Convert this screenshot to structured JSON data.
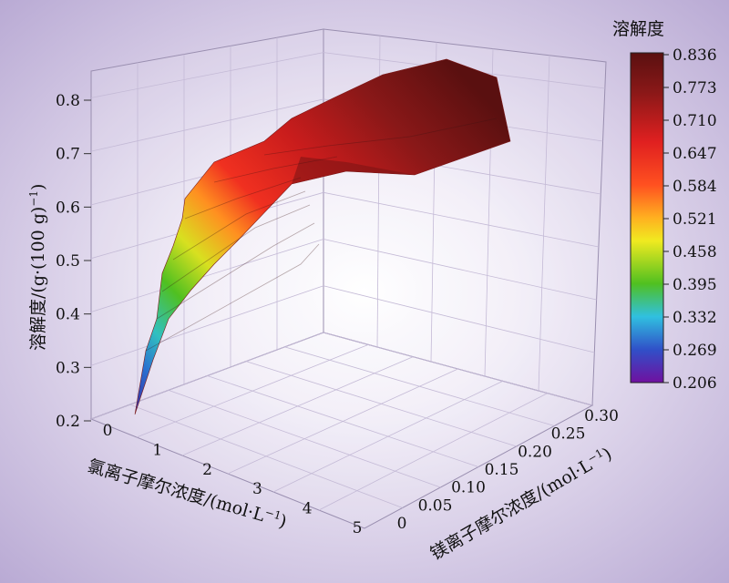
{
  "chart_data": {
    "type": "surface",
    "colorbar": {
      "title": "溶解度",
      "ticks": [
        "0.836",
        "0.773",
        "0.710",
        "0.647",
        "0.584",
        "0.521",
        "0.458",
        "0.395",
        "0.332",
        "0.269",
        "0.206"
      ],
      "range": [
        0.206,
        0.836
      ],
      "colors": [
        "#5a1010",
        "#7a1a1a",
        "#a01818",
        "#e02020",
        "#ff3020",
        "#ff8a20",
        "#f0ea20",
        "#60c820",
        "#30b8c8",
        "#3050c8",
        "#7010a0"
      ]
    },
    "z_axis": {
      "label": "溶解度/(g·(100 g)",
      "label_sup": "−1",
      "label_close": ")",
      "ticks": [
        "0.8",
        "0.7",
        "0.6",
        "0.5",
        "0.4",
        "0.3",
        "0.2"
      ],
      "range": [
        0.2,
        0.85
      ]
    },
    "x_axis": {
      "label": "氯离子摩尔浓度/(mol·L",
      "label_sup": "−1",
      "label_close": ")",
      "ticks": [
        "0",
        "1",
        "2",
        "3",
        "4",
        "5"
      ],
      "range": [
        0,
        5
      ]
    },
    "y_axis": {
      "label": "镁离子摩尔浓度/(mol·L",
      "label_sup": "−1",
      "label_close": ")",
      "ticks": [
        "0",
        "0.05",
        "0.10",
        "0.15",
        "0.20",
        "0.25",
        "0.30"
      ],
      "range": [
        0,
        0.3
      ]
    },
    "surface_profile": {
      "x": [
        0,
        0.5,
        1.0,
        1.5,
        2.0,
        2.5,
        3.0,
        3.5,
        4.0,
        4.5,
        5.0
      ],
      "z": [
        0.22,
        0.4,
        0.48,
        0.55,
        0.62,
        0.68,
        0.73,
        0.77,
        0.8,
        0.82,
        0.836
      ]
    }
  }
}
